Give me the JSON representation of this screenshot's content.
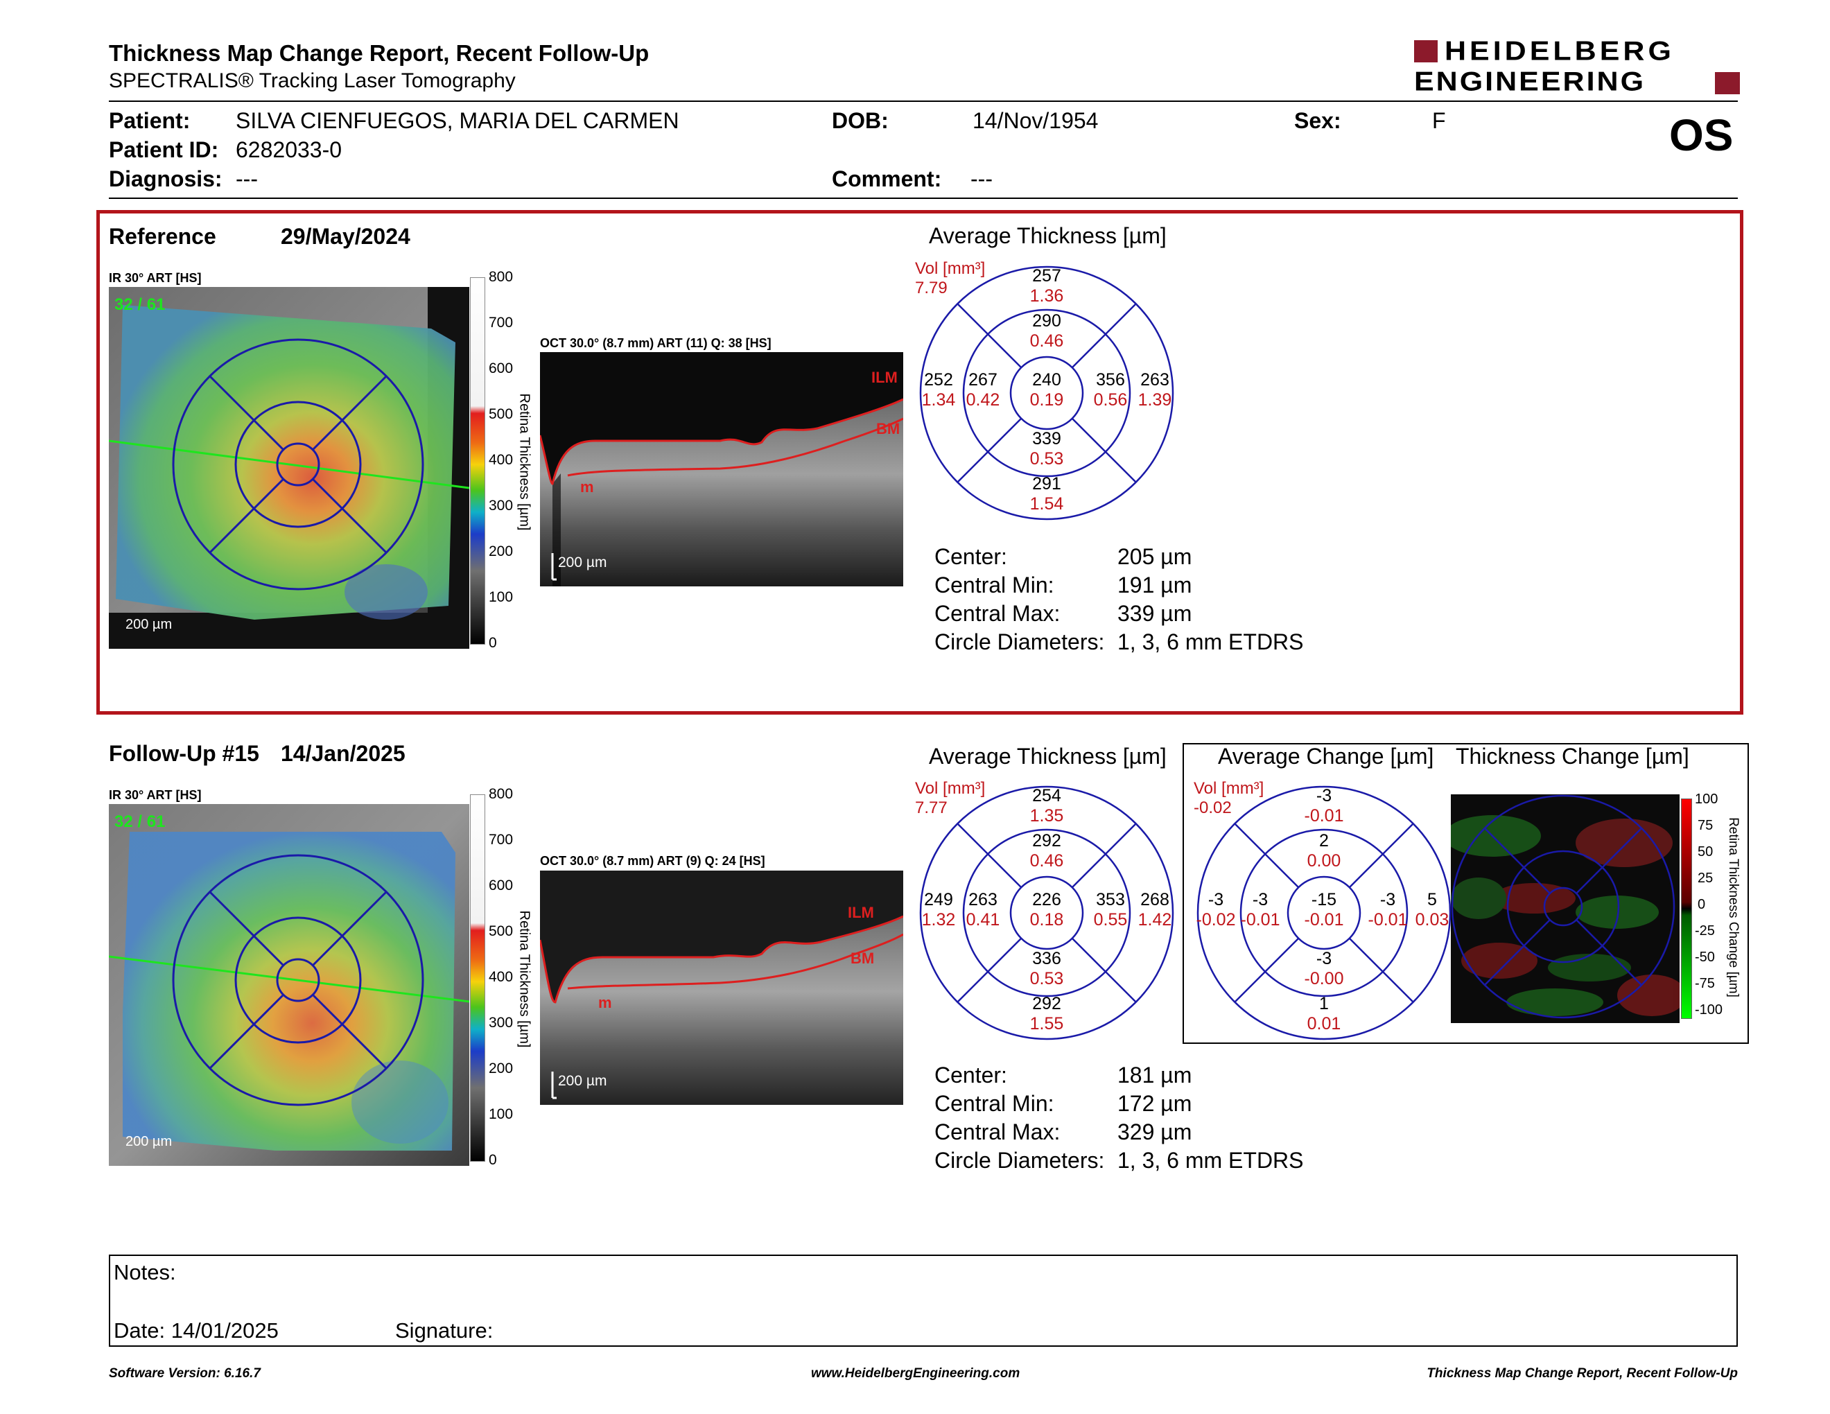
{
  "header": {
    "title": "Thickness Map Change Report, Recent Follow-Up",
    "subtitle": "SPECTRALIS® Tracking Laser Tomography",
    "logo_line1": "HEIDELBERG",
    "logo_line2": "ENGINEERING"
  },
  "patient": {
    "patient_label": "Patient:",
    "patient_value": "SILVA CIENFUEGOS, MARIA DEL CARMEN",
    "dob_label": "DOB:",
    "dob_value": "14/Nov/1954",
    "sex_label": "Sex:",
    "sex_value": "F",
    "id_label": "Patient ID:",
    "id_value": "6282033-0",
    "diagnosis_label": "Diagnosis:",
    "diagnosis_value": "---",
    "comment_label": "Comment:",
    "comment_value": "---",
    "eye": "OS"
  },
  "reference": {
    "label": "Reference",
    "date": "29/May/2024",
    "ir_label": "IR 30° ART [HS]",
    "quality_overlay": "32 / 61",
    "scale_label": "200 µm",
    "oct_label": "OCT 30.0° (8.7 mm) ART (11) Q: 38 [HS]",
    "oct_scale": "200 µm",
    "avg_title": "Average Thickness [µm]",
    "vol_label": "Vol [mm³]",
    "vol_value": "7.79",
    "etdrs": {
      "outer_sup": [
        "257",
        "1.36"
      ],
      "inner_sup": [
        "290",
        "0.46"
      ],
      "outer_temp": [
        "252",
        "1.34"
      ],
      "inner_temp": [
        "267",
        "0.42"
      ],
      "center": [
        "240",
        "0.19"
      ],
      "inner_nas": [
        "356",
        "0.56"
      ],
      "outer_nas": [
        "263",
        "1.39"
      ],
      "inner_inf": [
        "339",
        "0.53"
      ],
      "outer_inf": [
        "291",
        "1.54"
      ]
    },
    "stats": [
      {
        "label": "Center:",
        "value": "205 µm"
      },
      {
        "label": "Central Min:",
        "value": "191 µm"
      },
      {
        "label": "Central Max:",
        "value": "339 µm"
      },
      {
        "label": "Circle Diameters:",
        "value": "1, 3, 6 mm ETDRS"
      }
    ]
  },
  "followup": {
    "label": "Follow-Up #15",
    "date": "14/Jan/2025",
    "ir_label": "IR 30° ART [HS]",
    "quality_overlay": "32 / 61",
    "scale_label": "200 µm",
    "oct_label": "OCT 30.0° (8.7 mm) ART (9) Q: 24 [HS]",
    "oct_scale": "200 µm",
    "avg_title": "Average Thickness [µm]",
    "vol_label": "Vol [mm³]",
    "vol_value": "7.77",
    "etdrs": {
      "outer_sup": [
        "254",
        "1.35"
      ],
      "inner_sup": [
        "292",
        "0.46"
      ],
      "outer_temp": [
        "249",
        "1.32"
      ],
      "inner_temp": [
        "263",
        "0.41"
      ],
      "center": [
        "226",
        "0.18"
      ],
      "inner_nas": [
        "353",
        "0.55"
      ],
      "outer_nas": [
        "268",
        "1.42"
      ],
      "inner_inf": [
        "336",
        "0.53"
      ],
      "outer_inf": [
        "292",
        "1.55"
      ]
    },
    "stats": [
      {
        "label": "Center:",
        "value": "181 µm"
      },
      {
        "label": "Central Min:",
        "value": "172 µm"
      },
      {
        "label": "Central Max:",
        "value": "329 µm"
      },
      {
        "label": "Circle Diameters:",
        "value": "1, 3, 6 mm ETDRS"
      }
    ]
  },
  "change": {
    "avg_change_title": "Average Change [µm]",
    "thickness_change_title": "Thickness Change [µm]",
    "vol_label": "Vol [mm³]",
    "vol_value": "-0.02",
    "etdrs": {
      "outer_sup": [
        "-3",
        "-0.01"
      ],
      "inner_sup": [
        "2",
        "0.00"
      ],
      "outer_temp": [
        "-3",
        "-0.02"
      ],
      "inner_temp": [
        "-3",
        "-0.01"
      ],
      "center": [
        "-15",
        "-0.01"
      ],
      "inner_nas": [
        "-3",
        "-0.01"
      ],
      "outer_nas": [
        "5",
        "0.03"
      ],
      "inner_inf": [
        "-3",
        "-0.00"
      ],
      "outer_inf": [
        "1",
        "0.01"
      ]
    },
    "scale_ticks": [
      "100",
      "75",
      "50",
      "25",
      "0",
      "-25",
      "-50",
      "-75",
      "-100"
    ],
    "scale_axis_label": "Retina Thickness Change [µm]"
  },
  "thickness_scale": {
    "ticks": [
      "800",
      "700",
      "600",
      "500",
      "400",
      "300",
      "200",
      "100",
      "0"
    ],
    "axis_label": "Retina Thickness [µm]"
  },
  "oct_layers": {
    "ilm": "ILM",
    "bm": "BM",
    "m": "m"
  },
  "notes": {
    "notes_label": "Notes:",
    "date_label": "Date: 14/01/2025",
    "signature_label": "Signature:"
  },
  "footer": {
    "left": "Software Version: 6.16.7",
    "center": "www.HeidelbergEngineering.com",
    "right": "Thickness Map Change Report, Recent Follow-Up"
  },
  "colors": {
    "accent_red": "#c0161b",
    "frame_red": "#b3141b",
    "etdrs_blue": "#1a1aa8",
    "logo_red": "#8c1a2b"
  }
}
